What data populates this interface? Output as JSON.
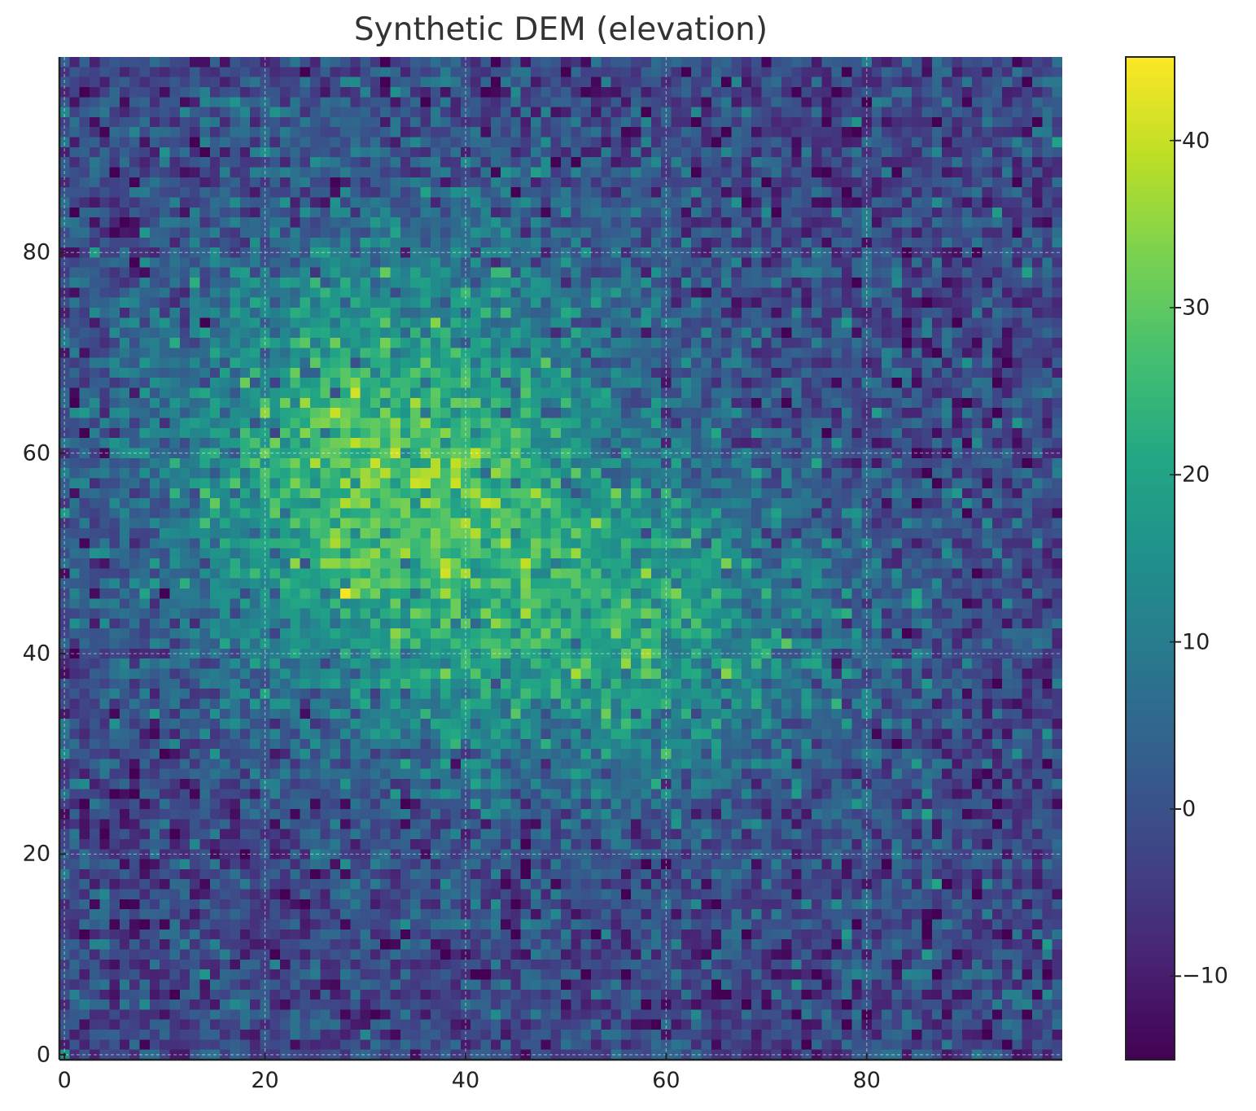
{
  "chart_data": {
    "type": "heatmap",
    "title": "Synthetic DEM (elevation)",
    "xlabel": "",
    "ylabel": "",
    "grid_size": [
      100,
      100
    ],
    "xlim": [
      -0.5,
      99.5
    ],
    "ylim": [
      -0.5,
      99.5
    ],
    "origin": "lower",
    "x_ticks": [
      0,
      20,
      40,
      60,
      80
    ],
    "y_ticks": [
      0,
      20,
      40,
      60,
      80
    ],
    "grid": true,
    "colormap": "viridis",
    "colorbar": {
      "min": -15,
      "max": 45,
      "ticks": [
        -10,
        0,
        10,
        20,
        30,
        40
      ]
    },
    "surface_model": {
      "base": -2,
      "peaks": [
        {
          "x": 33,
          "y": 58,
          "amplitude": 30,
          "sigma_x": 16,
          "sigma_y": 16
        },
        {
          "x": 60,
          "y": 41,
          "amplitude": 18,
          "sigma_x": 14,
          "sigma_y": 10
        }
      ],
      "noise_amplitude": 6.5
    }
  },
  "labels": {
    "x_ticks": [
      "0",
      "20",
      "40",
      "60",
      "80"
    ],
    "y_ticks": [
      "0",
      "20",
      "40",
      "60",
      "80"
    ],
    "cb_ticks": [
      "−10",
      "0",
      "10",
      "20",
      "30",
      "40"
    ]
  }
}
